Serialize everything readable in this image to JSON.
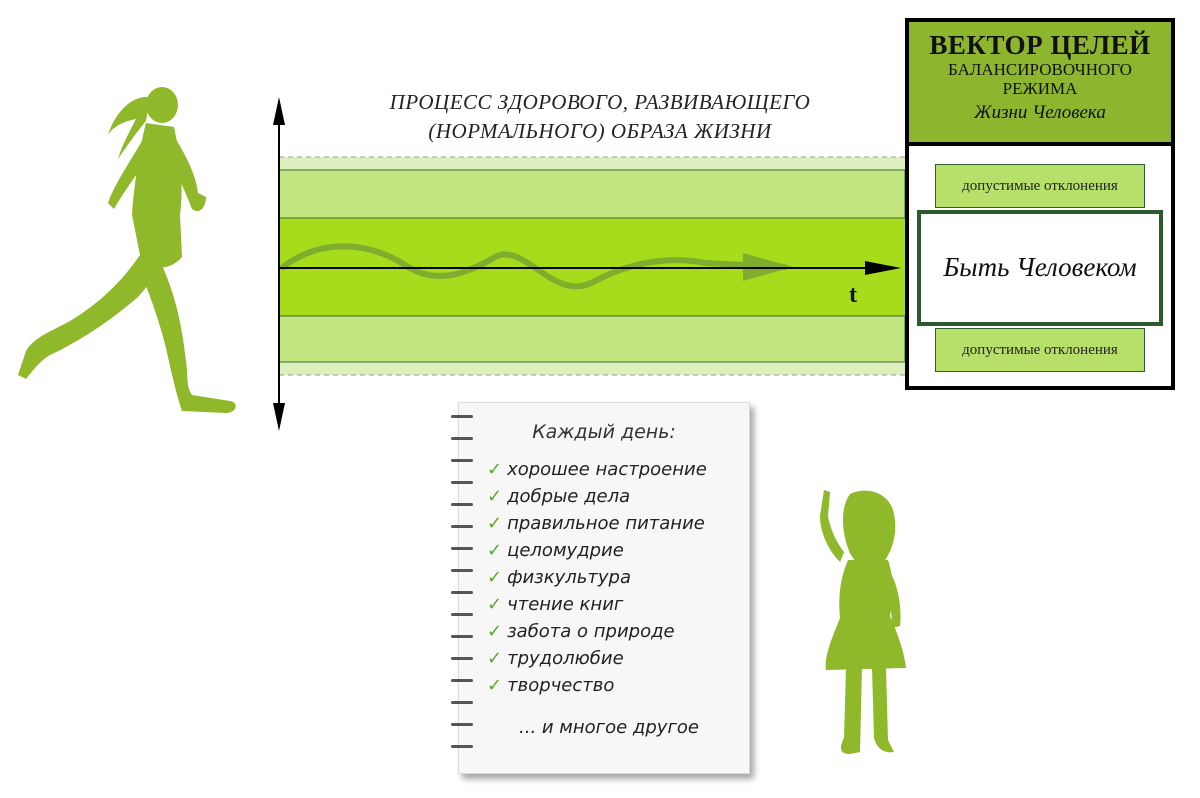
{
  "process_title": {
    "line1": "ПРОЦЕСС ЗДОРОВОГО, РАЗВИВАЮЩЕГО",
    "line2": "(НОРМАЛЬНОГО) ОБРАЗА ЖИЗНИ"
  },
  "axis": {
    "t_label": "t"
  },
  "goal_vector": {
    "title": "ВЕКТОР ЦЕЛЕЙ",
    "subtitle_line1": "БАЛАНСИРОВОЧНОГО",
    "subtitle_line2": "РЕЖИМА",
    "subtitle_line3": "Жизни Человека",
    "deviation_top": "допустимые отклонения",
    "center": "Быть Человеком",
    "deviation_bottom": "допустимые отклонения"
  },
  "notebook": {
    "title": "Каждый день:",
    "items": [
      "хорошее настроение",
      "добрые дела",
      "правильное питание",
      "целомудрие",
      "физкультура",
      "чтение книг",
      "забота о природе",
      "трудолюбие",
      "творчество"
    ],
    "more": "... и многое другое",
    "check_icon": "✓"
  },
  "colors": {
    "band_light": "#cde99a",
    "band_mid": "#b7e06a",
    "band_core": "#a6dc1c",
    "silhouette": "#8fb82a",
    "check": "#5aa82a"
  }
}
